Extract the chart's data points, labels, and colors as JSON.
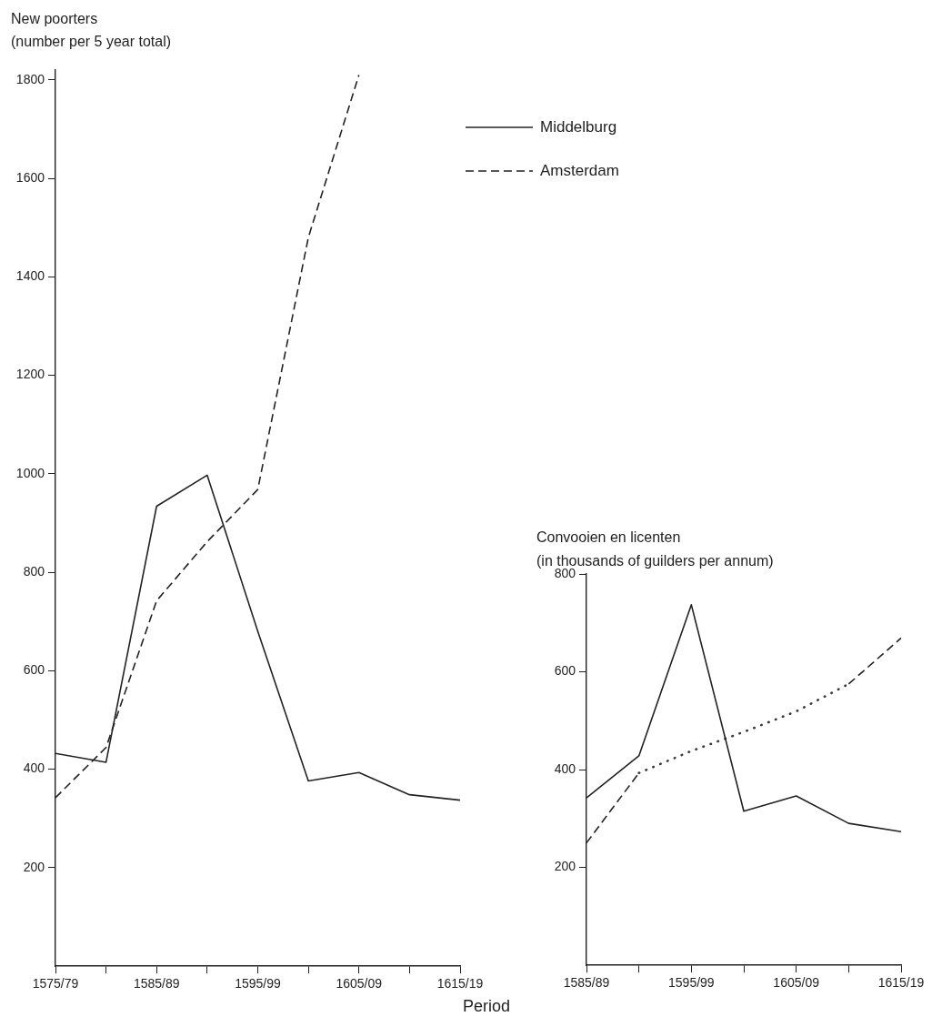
{
  "chart_data": [
    {
      "type": "line",
      "ylabel": "New poorters\n(number per 5 year total)",
      "xlabel": "Period",
      "categories": [
        "1575/79",
        null,
        "1585/89",
        null,
        "1595/99",
        null,
        "1605/09",
        null,
        "1615/19"
      ],
      "series": [
        {
          "name": "Middelburg",
          "color": "#222222",
          "line_style": "solid",
          "values": [
            432,
            414,
            934,
            997,
            680,
            376,
            393,
            348,
            337
          ]
        },
        {
          "name": "Amsterdam",
          "color": "#222222",
          "line_style": "dashed",
          "values": [
            342,
            444,
            742,
            862,
            968,
            1480,
            1810,
            null,
            null
          ]
        }
      ],
      "ylim": [
        0,
        1820
      ],
      "yticks": [
        200,
        400,
        600,
        800,
        1000,
        1200,
        1400,
        1600,
        1800
      ],
      "grid": false,
      "legend": "top right"
    },
    {
      "type": "line",
      "ylabel": "Convooien en licenten\n(in thousands of guilders per annum)",
      "categories": [
        "1585/89",
        null,
        "1595/99",
        null,
        "1605/09",
        null,
        "1615/19"
      ],
      "series": [
        {
          "color": "#222222",
          "line_style": "solid",
          "values": [
            342,
            428,
            737,
            315,
            346,
            290,
            273
          ]
        },
        {
          "color": "#222222",
          "line_style": "dashed",
          "values": [
            250,
            393,
            null,
            null,
            null,
            575,
            669
          ]
        },
        {
          "color": "#3a3a3a",
          "line_style": "dotted",
          "values": [
            null,
            393,
            438,
            477,
            519,
            575,
            null
          ]
        }
      ],
      "ylim": [
        0,
        800
      ],
      "yticks": [
        200,
        400,
        600,
        800
      ],
      "grid": false,
      "legend": false
    }
  ]
}
